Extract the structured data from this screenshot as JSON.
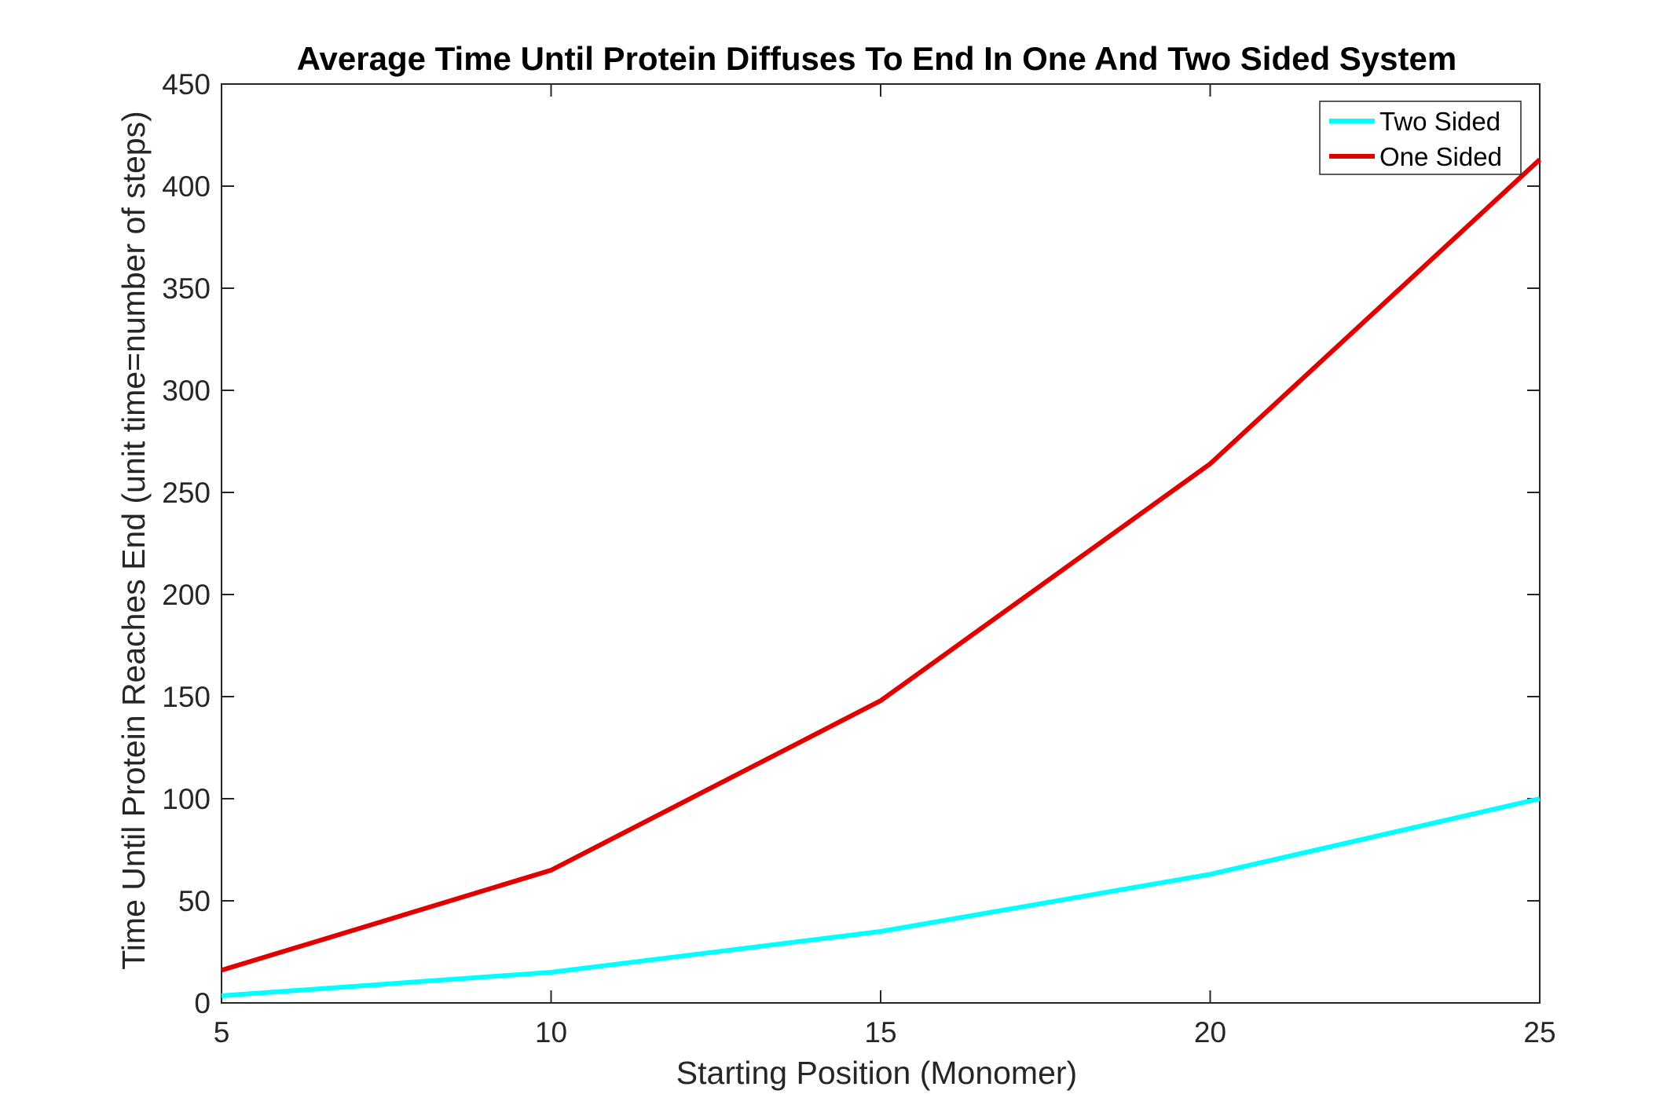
{
  "chart_data": {
    "type": "line",
    "title": "Average Time Until Protein Diffuses To End In One And Two Sided System",
    "xlabel": "Starting Position (Monomer)",
    "ylabel": "Time Until Protein Reaches End (unit time=number of steps)",
    "x": [
      5,
      10,
      15,
      20,
      25
    ],
    "xlim": [
      5,
      25
    ],
    "ylim": [
      0,
      450
    ],
    "xticks": [
      5,
      10,
      15,
      20,
      25
    ],
    "yticks": [
      0,
      50,
      100,
      150,
      200,
      250,
      300,
      350,
      400,
      450
    ],
    "grid": false,
    "legend_position": "top-right",
    "series": [
      {
        "name": "Two Sided",
        "color": "#00ffff",
        "values": [
          3.5,
          15,
          35,
          63,
          100
        ]
      },
      {
        "name": "One Sided",
        "color": "#e00000",
        "values": [
          16,
          65,
          148,
          264,
          413
        ]
      }
    ]
  }
}
